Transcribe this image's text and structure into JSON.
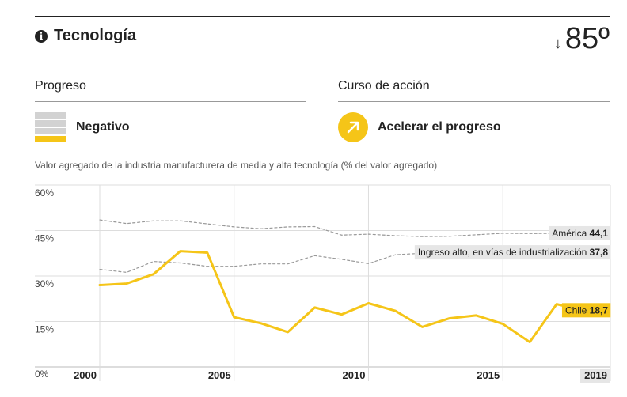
{
  "header": {
    "title": "Tecnología",
    "rank_value": "85º",
    "rank_arrow": "↓"
  },
  "progress": {
    "label": "Progreso",
    "status": "Negativo",
    "bars_filled": 1,
    "bars_total": 4
  },
  "action": {
    "label": "Curso de acción",
    "status": "Acelerar el progreso"
  },
  "colors": {
    "accent": "#f5c518",
    "reference": "#999999",
    "bar_inactive": "#d2d2d2"
  },
  "chart_data": {
    "type": "line",
    "title": "Valor agregado de la industria manufacturera de media y alta tecnología (% del valor agregado)",
    "ylim": [
      0,
      60
    ],
    "yticks": [
      0,
      15,
      30,
      45,
      60
    ],
    "ytick_labels": [
      "0%",
      "15%",
      "30%",
      "45%",
      "60%"
    ],
    "xlim": [
      2000,
      2019
    ],
    "xticks": [
      2000,
      2005,
      2010,
      2015,
      2019
    ],
    "xtick_labels": [
      "2000",
      "2005",
      "2010",
      "2015",
      "2019"
    ],
    "grid": true,
    "series": [
      {
        "name": "América",
        "style": "dashed",
        "label_value": "44,1",
        "x": [
          2000,
          2001,
          2002,
          2003,
          2004,
          2005,
          2006,
          2007,
          2008,
          2009,
          2010,
          2011,
          2012,
          2013,
          2014,
          2015,
          2016,
          2017,
          2018
        ],
        "values": [
          48.5,
          47.3,
          48.2,
          48.2,
          47.2,
          46.2,
          45.6,
          46.2,
          46.3,
          43.5,
          43.8,
          43.3,
          43.0,
          43.1,
          43.6,
          44.1,
          44.0,
          44.1,
          44.1
        ]
      },
      {
        "name": "Ingreso alto, en vías de industrialización",
        "style": "dashed",
        "label_value": "37,8",
        "x": [
          2000,
          2001,
          2002,
          2003,
          2004,
          2005,
          2006,
          2007,
          2008,
          2009,
          2010,
          2011,
          2012,
          2013,
          2014,
          2015,
          2016,
          2017,
          2018
        ],
        "values": [
          32.2,
          31.2,
          34.8,
          34.3,
          33.2,
          33.2,
          34.0,
          34.0,
          36.7,
          35.5,
          34.1,
          37.0,
          37.5,
          37.8,
          37.8,
          37.8,
          37.8,
          37.8,
          37.8
        ]
      },
      {
        "name": "Chile",
        "style": "solid",
        "label_value": "18,7",
        "x": [
          2000,
          2001,
          2002,
          2003,
          2004,
          2005,
          2006,
          2007,
          2008,
          2009,
          2010,
          2011,
          2012,
          2013,
          2014,
          2015,
          2016,
          2017,
          2018
        ],
        "values": [
          27.0,
          27.5,
          30.6,
          38.2,
          37.7,
          16.4,
          14.4,
          11.5,
          19.6,
          17.3,
          21.0,
          18.5,
          13.2,
          16.0,
          17.0,
          14.2,
          8.2,
          20.7,
          18.7
        ]
      }
    ]
  }
}
